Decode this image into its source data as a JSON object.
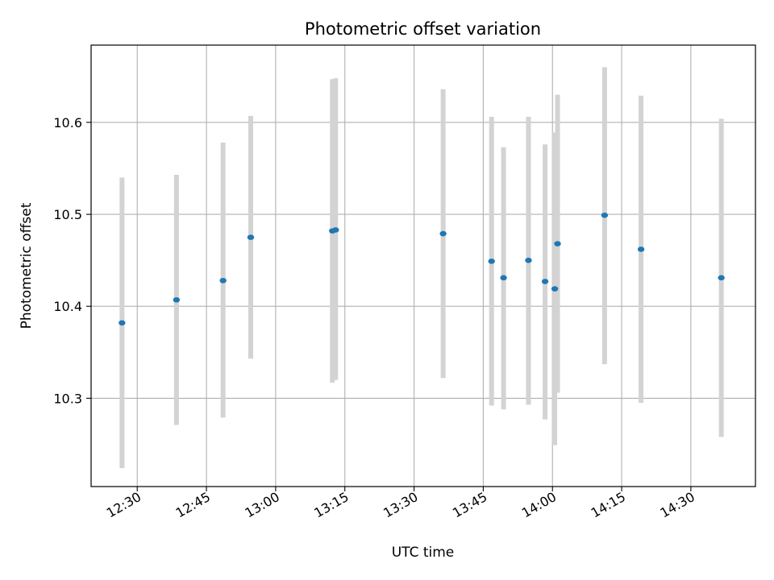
{
  "chart_data": {
    "type": "scatter",
    "title": "Photometric offset variation",
    "xlabel": "UTC time",
    "ylabel": "Photometric offset",
    "x_unit": "HH:MM UTC",
    "xlim": [
      "12:20",
      "14:44"
    ],
    "ylim": [
      10.204,
      10.684
    ],
    "x_ticks": [
      "12:30",
      "12:45",
      "13:00",
      "13:15",
      "13:30",
      "13:45",
      "14:00",
      "14:15",
      "14:30"
    ],
    "y_ticks": [
      "10.3",
      "10.4",
      "10.5",
      "10.6"
    ],
    "y_tick_values": [
      10.3,
      10.4,
      10.5,
      10.6
    ],
    "grid": true,
    "legend": "none",
    "colors": {
      "point": "#1f77b4",
      "errorbar": "#d3d3d3",
      "grid": "#b0b0b0"
    },
    "points": [
      {
        "x": "12:26.7",
        "y": 10.382,
        "ymin": 10.224,
        "ymax": 10.54
      },
      {
        "x": "12:38.5",
        "y": 10.407,
        "ymin": 10.271,
        "ymax": 10.543
      },
      {
        "x": "12:48.6",
        "y": 10.428,
        "ymin": 10.279,
        "ymax": 10.578
      },
      {
        "x": "12:54.6",
        "y": 10.475,
        "ymin": 10.343,
        "ymax": 10.607
      },
      {
        "x": "13:12.3",
        "y": 10.482,
        "ymin": 10.317,
        "ymax": 10.647
      },
      {
        "x": "13:13.0",
        "y": 10.483,
        "ymin": 10.32,
        "ymax": 10.648
      },
      {
        "x": "13:36.3",
        "y": 10.479,
        "ymin": 10.322,
        "ymax": 10.636
      },
      {
        "x": "13:46.8",
        "y": 10.449,
        "ymin": 10.292,
        "ymax": 10.606
      },
      {
        "x": "13:49.4",
        "y": 10.431,
        "ymin": 10.288,
        "ymax": 10.573
      },
      {
        "x": "13:54.8",
        "y": 10.45,
        "ymin": 10.293,
        "ymax": 10.606
      },
      {
        "x": "13:58.4",
        "y": 10.427,
        "ymin": 10.277,
        "ymax": 10.576
      },
      {
        "x": "14:00.5",
        "y": 10.419,
        "ymin": 10.249,
        "ymax": 10.589
      },
      {
        "x": "14:01.1",
        "y": 10.468,
        "ymin": 10.306,
        "ymax": 10.63
      },
      {
        "x": "14:11.3",
        "y": 10.499,
        "ymin": 10.337,
        "ymax": 10.66
      },
      {
        "x": "14:19.2",
        "y": 10.462,
        "ymin": 10.295,
        "ymax": 10.629
      },
      {
        "x": "14:36.6",
        "y": 10.431,
        "ymin": 10.258,
        "ymax": 10.604
      }
    ]
  }
}
